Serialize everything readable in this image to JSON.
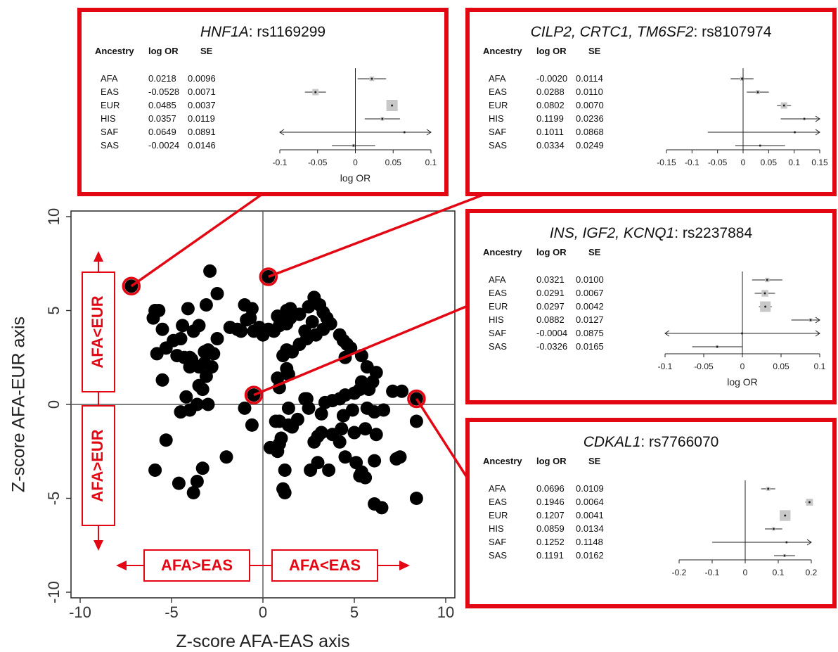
{
  "chart_data": [
    {
      "type": "scatter",
      "xlabel": "Z-score AFA-EAS axis",
      "ylabel": "Z-score AFA-EUR axis",
      "xlim": [
        -10.5,
        10.5
      ],
      "ylim": [
        -10.3,
        10.3
      ],
      "xticks": [
        "-10",
        "-5",
        "0",
        "5",
        "10"
      ],
      "yticks": [
        "10",
        "5",
        "0",
        "-5",
        "-10"
      ],
      "xtick_values": [
        -10,
        -5,
        0,
        5,
        10
      ],
      "ytick_values": [
        10,
        5,
        0,
        -5,
        -10
      ],
      "reference_lines": {
        "x": 0,
        "y": 0
      },
      "direction_labels": {
        "up": "AFA<EUR",
        "down": "AFA>EUR",
        "left": "AFA>EAS",
        "right": "AFA<EAS"
      },
      "highlighted": [
        {
          "x": -7.2,
          "y": 6.3,
          "panel": 0
        },
        {
          "x": 0.3,
          "y": 6.8,
          "panel": 1
        },
        {
          "x": -0.5,
          "y": 0.5,
          "panel": 2
        },
        {
          "x": 8.4,
          "y": 0.3,
          "panel": 3
        }
      ],
      "points": [
        [
          -7.2,
          6.3
        ],
        [
          0.3,
          6.8
        ],
        [
          -0.5,
          0.5
        ],
        [
          8.4,
          0.3
        ],
        [
          -2.9,
          7.1
        ],
        [
          -2.5,
          5.9
        ],
        [
          -3.1,
          5.3
        ],
        [
          -4.1,
          5.1
        ],
        [
          -5.7,
          5.0
        ],
        [
          -5.9,
          5.0
        ],
        [
          -6.0,
          4.6
        ],
        [
          -5.5,
          4.0
        ],
        [
          -4.4,
          4.2
        ],
        [
          -3.8,
          3.9
        ],
        [
          -3.5,
          4.2
        ],
        [
          -4.9,
          3.4
        ],
        [
          -4.5,
          3.5
        ],
        [
          -5.3,
          3.0
        ],
        [
          -5.8,
          2.7
        ],
        [
          -4.7,
          2.6
        ],
        [
          -4.3,
          2.5
        ],
        [
          -4.0,
          2.5
        ],
        [
          -3.9,
          2.4
        ],
        [
          -3.2,
          2.8
        ],
        [
          -3.0,
          2.9
        ],
        [
          -2.7,
          2.7
        ],
        [
          -2.5,
          3.5
        ],
        [
          -3.5,
          2.0
        ],
        [
          -3.2,
          2.2
        ],
        [
          -2.8,
          2.0
        ],
        [
          -4.0,
          2.0
        ],
        [
          -3.5,
          1.0
        ],
        [
          -3.1,
          1.5
        ],
        [
          -3.3,
          0.8
        ],
        [
          -5.5,
          1.3
        ],
        [
          -4.2,
          0.4
        ],
        [
          -3.6,
          0.0
        ],
        [
          -3.0,
          0.0
        ],
        [
          -4.0,
          -0.3
        ],
        [
          -4.5,
          -0.4
        ],
        [
          -5.3,
          -1.9
        ],
        [
          -5.9,
          -3.5
        ],
        [
          -4.6,
          -4.2
        ],
        [
          -3.6,
          -4.1
        ],
        [
          -3.3,
          -3.4
        ],
        [
          -3.8,
          -4.7
        ],
        [
          -2.0,
          -2.8
        ],
        [
          -1.8,
          4.1
        ],
        [
          -1.4,
          4.0
        ],
        [
          -1.2,
          3.9
        ],
        [
          -0.9,
          4.5
        ],
        [
          -1.0,
          5.3
        ],
        [
          -0.6,
          5.1
        ],
        [
          -0.7,
          4.6
        ],
        [
          -0.2,
          4.1
        ],
        [
          -0.5,
          3.9
        ],
        [
          0.0,
          3.7
        ],
        [
          0.3,
          4.0
        ],
        [
          0.6,
          3.9
        ],
        [
          0.8,
          4.7
        ],
        [
          0.9,
          4.2
        ],
        [
          1.3,
          4.3
        ],
        [
          1.3,
          5.0
        ],
        [
          1.5,
          4.6
        ],
        [
          1.5,
          5.1
        ],
        [
          2.0,
          4.8
        ],
        [
          2.3,
          3.9
        ],
        [
          2.4,
          3.5
        ],
        [
          2.0,
          3.2
        ],
        [
          1.6,
          2.8
        ],
        [
          1.3,
          2.9
        ],
        [
          1.1,
          2.6
        ],
        [
          1.3,
          1.9
        ],
        [
          1.4,
          1.6
        ],
        [
          2.8,
          5.7
        ],
        [
          2.5,
          5.2
        ],
        [
          3.1,
          5.3
        ],
        [
          3.3,
          4.9
        ],
        [
          3.5,
          4.6
        ],
        [
          3.7,
          4.3
        ],
        [
          2.7,
          4.4
        ],
        [
          3.3,
          4.0
        ],
        [
          2.9,
          3.7
        ],
        [
          4.2,
          3.7
        ],
        [
          4.4,
          3.4
        ],
        [
          4.6,
          3.2
        ],
        [
          4.8,
          3.0
        ],
        [
          4.5,
          2.5
        ],
        [
          5.4,
          2.6
        ],
        [
          5.7,
          2.0
        ],
        [
          6.2,
          1.7
        ],
        [
          6.0,
          1.2
        ],
        [
          5.4,
          1.2
        ],
        [
          5.8,
          0.8
        ],
        [
          5.3,
          0.8
        ],
        [
          5.0,
          0.6
        ],
        [
          4.5,
          0.5
        ],
        [
          4.2,
          0.3
        ],
        [
          3.8,
          0.2
        ],
        [
          3.4,
          0.1
        ],
        [
          2.4,
          0.3
        ],
        [
          2.3,
          0.3
        ],
        [
          2.5,
          -0.2
        ],
        [
          3.2,
          -0.5
        ],
        [
          4.4,
          -0.6
        ],
        [
          4.9,
          -0.3
        ],
        [
          5.7,
          -0.2
        ],
        [
          6.1,
          -0.4
        ],
        [
          6.6,
          -0.3
        ],
        [
          7.1,
          0.7
        ],
        [
          7.6,
          0.7
        ],
        [
          6.2,
          -1.6
        ],
        [
          5.6,
          -1.3
        ],
        [
          5.0,
          -1.5
        ],
        [
          4.3,
          -1.3
        ],
        [
          3.8,
          -1.6
        ],
        [
          3.2,
          -1.5
        ],
        [
          3.0,
          -1.7
        ],
        [
          2.8,
          -2.0
        ],
        [
          3.0,
          -3.1
        ],
        [
          3.6,
          -3.5
        ],
        [
          4.2,
          -2.0
        ],
        [
          4.5,
          -2.8
        ],
        [
          5.1,
          -3.1
        ],
        [
          5.4,
          -3.6
        ],
        [
          5.3,
          -3.8
        ],
        [
          5.6,
          -3.9
        ],
        [
          6.1,
          -3.0
        ],
        [
          6.1,
          -5.3
        ],
        [
          6.5,
          -5.5
        ],
        [
          7.3,
          -2.9
        ],
        [
          7.5,
          -2.8
        ],
        [
          8.4,
          -0.9
        ],
        [
          8.4,
          -5.0
        ],
        [
          2.6,
          -3.5
        ],
        [
          1.2,
          -3.5
        ],
        [
          1.1,
          -4.5
        ],
        [
          1.2,
          -4.7
        ],
        [
          0.8,
          -2.5
        ],
        [
          1.0,
          -1.8
        ],
        [
          0.9,
          -2.1
        ],
        [
          0.4,
          -2.3
        ],
        [
          1.4,
          -1.1
        ],
        [
          0.9,
          -0.9
        ],
        [
          0.7,
          -0.9
        ],
        [
          1.9,
          -0.8
        ],
        [
          1.6,
          -1.2
        ],
        [
          0.9,
          0.9
        ],
        [
          0.8,
          1.4
        ],
        [
          -1.0,
          -0.2
        ],
        [
          -0.6,
          -1.1
        ],
        [
          1.4,
          -0.2
        ]
      ]
    },
    {
      "type": "forest",
      "gene": "HNF1A",
      "snp": ": rs1169299",
      "headers": [
        "Ancestry",
        "log OR",
        "SE"
      ],
      "rows": [
        {
          "ancestry": "AFA",
          "log_or": "0.0218",
          "se": "0.0096",
          "value": 0.0218,
          "se_value": 0.0096
        },
        {
          "ancestry": "EAS",
          "log_or": "-0.0528",
          "se": "0.0071",
          "value": -0.0528,
          "se_value": 0.0071
        },
        {
          "ancestry": "EUR",
          "log_or": "0.0485",
          "se": "0.0037",
          "value": 0.0485,
          "se_value": 0.0037
        },
        {
          "ancestry": "HIS",
          "log_or": "0.0357",
          "se": "0.0119",
          "value": 0.0357,
          "se_value": 0.0119
        },
        {
          "ancestry": "SAF",
          "log_or": "0.0649",
          "se": "0.0891",
          "value": 0.0649,
          "se_value": 0.0891
        },
        {
          "ancestry": "SAS",
          "log_or": "-0.0024",
          "se": "0.0146",
          "value": -0.0024,
          "se_value": 0.0146
        }
      ],
      "xlim": [
        -0.1,
        0.1
      ],
      "xticks": [
        -0.1,
        -0.05,
        0,
        0.05,
        0.1
      ],
      "xtick_labels": [
        "-0.1",
        "-0.05",
        "0",
        "0.05",
        "0.1"
      ],
      "xlabel": "log OR"
    },
    {
      "type": "forest",
      "gene": "CILP2, CRTC1, TM6SF2",
      "snp": ": rs8107974",
      "headers": [
        "Ancestry",
        "log OR",
        "SE"
      ],
      "rows": [
        {
          "ancestry": "AFA",
          "log_or": "-0.0020",
          "se": "0.0114",
          "value": -0.002,
          "se_value": 0.0114
        },
        {
          "ancestry": "EAS",
          "log_or": "0.0288",
          "se": "0.0110",
          "value": 0.0288,
          "se_value": 0.011
        },
        {
          "ancestry": "EUR",
          "log_or": "0.0802",
          "se": "0.0070",
          "value": 0.0802,
          "se_value": 0.007
        },
        {
          "ancestry": "HIS",
          "log_or": "0.1199",
          "se": "0.0236",
          "value": 0.1199,
          "se_value": 0.0236
        },
        {
          "ancestry": "SAF",
          "log_or": "0.1011",
          "se": "0.0868",
          "value": 0.1011,
          "se_value": 0.0868
        },
        {
          "ancestry": "SAS",
          "log_or": "0.0334",
          "se": "0.0249",
          "value": 0.0334,
          "se_value": 0.0249
        }
      ],
      "xlim": [
        -0.15,
        0.15
      ],
      "xticks": [
        -0.15,
        -0.1,
        -0.05,
        0,
        0.05,
        0.1,
        0.15
      ],
      "xtick_labels": [
        "-0.15",
        "-0.1",
        "-0.05",
        "0",
        "0.05",
        "0.1",
        "0.15"
      ],
      "xlabel": ""
    },
    {
      "type": "forest",
      "gene": "INS, IGF2, KCNQ1",
      "snp": ": rs2237884",
      "headers": [
        "Ancestry",
        "log OR",
        "SE"
      ],
      "rows": [
        {
          "ancestry": "AFA",
          "log_or": "0.0321",
          "se": "0.0100",
          "value": 0.0321,
          "se_value": 0.01
        },
        {
          "ancestry": "EAS",
          "log_or": "0.0291",
          "se": "0.0067",
          "value": 0.0291,
          "se_value": 0.0067
        },
        {
          "ancestry": "EUR",
          "log_or": "0.0297",
          "se": "0.0042",
          "value": 0.0297,
          "se_value": 0.0042
        },
        {
          "ancestry": "HIS",
          "log_or": "0.0882",
          "se": "0.0127",
          "value": 0.0882,
          "se_value": 0.0127
        },
        {
          "ancestry": "SAF",
          "log_or": "-0.0004",
          "se": "0.0875",
          "value": -0.0004,
          "se_value": 0.0875
        },
        {
          "ancestry": "SAS",
          "log_or": "-0.0326",
          "se": "0.0165",
          "value": -0.0326,
          "se_value": 0.0165
        }
      ],
      "xlim": [
        -0.1,
        0.1
      ],
      "xticks": [
        -0.1,
        -0.05,
        0,
        0.05,
        0.1
      ],
      "xtick_labels": [
        "-0.1",
        "-0.05",
        "0",
        "0.05",
        "0.1"
      ],
      "xlabel": "log OR"
    },
    {
      "type": "forest",
      "gene": "CDKAL1",
      "snp": ": rs7766070",
      "headers": [
        "Ancestry",
        "log OR",
        "SE"
      ],
      "rows": [
        {
          "ancestry": "AFA",
          "log_or": "0.0696",
          "se": "0.0109",
          "value": 0.0696,
          "se_value": 0.0109
        },
        {
          "ancestry": "EAS",
          "log_or": "0.1946",
          "se": "0.0064",
          "value": 0.1946,
          "se_value": 0.0064
        },
        {
          "ancestry": "EUR",
          "log_or": "0.1207",
          "se": "0.0041",
          "value": 0.1207,
          "se_value": 0.0041
        },
        {
          "ancestry": "HIS",
          "log_or": "0.0859",
          "se": "0.0134",
          "value": 0.0859,
          "se_value": 0.0134
        },
        {
          "ancestry": "SAF",
          "log_or": "0.1252",
          "se": "0.1148",
          "value": 0.1252,
          "se_value": 0.1148
        },
        {
          "ancestry": "SAS",
          "log_or": "0.1191",
          "se": "0.0162",
          "value": 0.1191,
          "se_value": 0.0162
        }
      ],
      "xlim": [
        -0.2,
        0.2
      ],
      "xticks": [
        -0.2,
        -0.1,
        0,
        0.1,
        0.2
      ],
      "xtick_labels": [
        "-0.2",
        "-0.1",
        "0",
        "0.1",
        "0.2"
      ],
      "xlabel": ""
    }
  ],
  "colors": {
    "accent": "#e30613",
    "point": "#000000",
    "axis": "#333333",
    "ci_box": "#c8c8c8"
  }
}
